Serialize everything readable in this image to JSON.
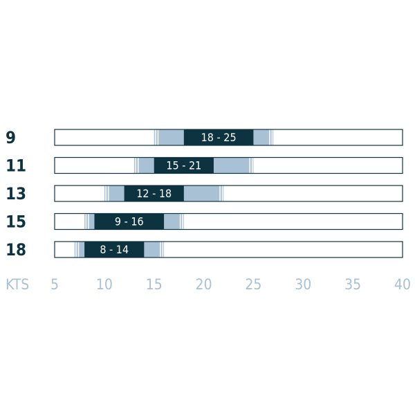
{
  "chart_data": {
    "type": "bar",
    "title": "",
    "xlabel": "KTS",
    "ylabel": "",
    "xlim": [
      5,
      40
    ],
    "x_ticks": [
      "5",
      "10",
      "15",
      "20",
      "25",
      "30",
      "35",
      "40"
    ],
    "grid": false,
    "rows": [
      {
        "size": "9",
        "label": "18 - 25",
        "core": [
          18,
          25
        ],
        "extended": [
          15,
          27
        ]
      },
      {
        "size": "11",
        "label": "15 - 21",
        "core": [
          15,
          21
        ],
        "extended": [
          13,
          25
        ]
      },
      {
        "size": "13",
        "label": "12 - 18",
        "core": [
          12,
          18
        ],
        "extended": [
          10,
          22
        ]
      },
      {
        "size": "15",
        "label": "9 - 16",
        "core": [
          9,
          16
        ],
        "extended": [
          8,
          18
        ]
      },
      {
        "size": "18",
        "label": "8 - 14",
        "core": [
          8,
          14
        ],
        "extended": [
          7,
          16
        ]
      }
    ],
    "colors": {
      "core": "#0d3340",
      "extended": "#a9c1d4",
      "outline": "#0d3340",
      "axis_text": "#a9c1d4"
    }
  }
}
